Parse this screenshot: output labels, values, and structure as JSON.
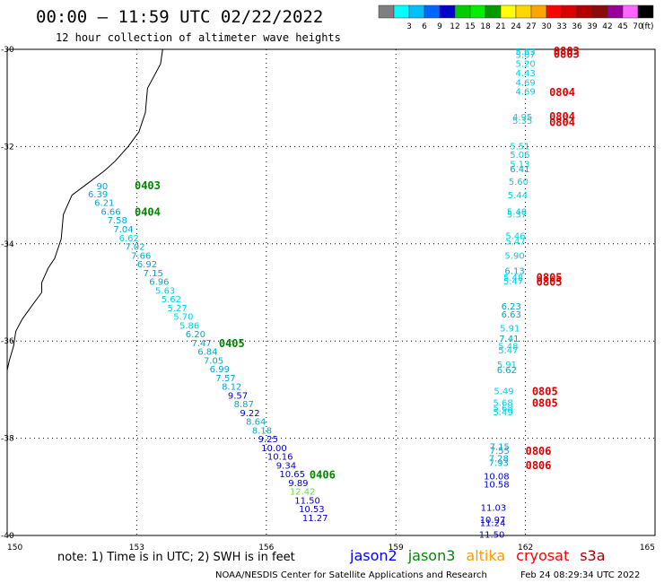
{
  "header": {
    "title": "00:00 – 11:59 UTC 02/22/2022",
    "subtitle": "12 hour collection of altimeter wave heights"
  },
  "colorbar": {
    "unit_label": "(ft)",
    "entries": [
      {
        "label": "",
        "color": "#7f7f7f"
      },
      {
        "label": "3",
        "color": "#00ffff"
      },
      {
        "label": "6",
        "color": "#00bfff"
      },
      {
        "label": "9",
        "color": "#0066ff"
      },
      {
        "label": "12",
        "color": "#0000cc"
      },
      {
        "label": "15",
        "color": "#00cc00"
      },
      {
        "label": "18",
        "color": "#00ee00"
      },
      {
        "label": "21",
        "color": "#009900"
      },
      {
        "label": "24",
        "color": "#ffff00"
      },
      {
        "label": "27",
        "color": "#ffd700"
      },
      {
        "label": "30",
        "color": "#ffa500"
      },
      {
        "label": "33",
        "color": "#ff0000"
      },
      {
        "label": "36",
        "color": "#dd0000"
      },
      {
        "label": "39",
        "color": "#b30000"
      },
      {
        "label": "42",
        "color": "#8b0a0a"
      },
      {
        "label": "45",
        "color": "#990099"
      },
      {
        "label": "70",
        "color": "#ff66ff"
      },
      {
        "label": "",
        "color": "#000000"
      }
    ]
  },
  "footer": {
    "note": "note:  1) Time is in UTC; 2) SWH is in feet",
    "credit": "NOAA/NESDIS Center for Satellite Applications and Research",
    "timestamp": "Feb 24 08:29:34 UTC 2022",
    "satellites": [
      {
        "name": "jason2",
        "color": "#0000ff"
      },
      {
        "name": "jason3",
        "color": "#008800"
      },
      {
        "name": "altika",
        "color": "#ff9900"
      },
      {
        "name": "cryosat",
        "color": "#ff0000"
      },
      {
        "name": "s3a",
        "color": "#990000"
      }
    ]
  },
  "chart_data": {
    "type": "scatter",
    "xlim": [
      150,
      165
    ],
    "ylim": [
      -40,
      -30
    ],
    "x_ticks": [
      "150",
      "153",
      "156",
      "159",
      "162",
      "165"
    ],
    "y_ticks": [
      "-30",
      "-32",
      "-34",
      "-36",
      "-38",
      "-40"
    ],
    "grid": true,
    "colors": {
      "light": "#00d0e8",
      "medium": "#00a8d0",
      "dark": "#0000cc",
      "green_light": "#66dd44",
      "time_green": "#008800",
      "time_red": "#dd0000",
      "coast": "#000000"
    },
    "coastline": [
      [
        153.6,
        -30.0
      ],
      [
        153.55,
        -30.3
      ],
      [
        153.25,
        -30.8
      ],
      [
        153.2,
        -31.3
      ],
      [
        153.05,
        -31.7
      ],
      [
        152.8,
        -32.0
      ],
      [
        152.5,
        -32.3
      ],
      [
        152.25,
        -32.5
      ],
      [
        151.8,
        -32.8
      ],
      [
        151.5,
        -33.0
      ],
      [
        151.3,
        -33.4
      ],
      [
        151.25,
        -33.9
      ],
      [
        151.1,
        -34.3
      ],
      [
        150.95,
        -34.5
      ],
      [
        150.8,
        -34.8
      ],
      [
        150.8,
        -35.0
      ],
      [
        150.55,
        -35.3
      ],
      [
        150.35,
        -35.55
      ],
      [
        150.2,
        -35.8
      ],
      [
        150.15,
        -36.1
      ],
      [
        150.05,
        -36.4
      ],
      [
        150.0,
        -36.6
      ]
    ],
    "series": [
      {
        "name": "jason3",
        "points": [
          {
            "x": 152.2,
            "y": -32.8,
            "v": "90",
            "c": "medium"
          },
          {
            "x": 152.1,
            "y": -32.97,
            "v": "6.39",
            "c": "medium"
          },
          {
            "x": 152.25,
            "y": -33.15,
            "v": "6.21",
            "c": "medium"
          },
          {
            "x": 152.4,
            "y": -33.33,
            "v": "6.66",
            "c": "medium"
          },
          {
            "x": 152.55,
            "y": -33.51,
            "v": "7.58",
            "c": "medium"
          },
          {
            "x": 152.69,
            "y": -33.69,
            "v": "7.04",
            "c": "medium"
          },
          {
            "x": 152.82,
            "y": -33.87,
            "v": "6.62",
            "c": "light"
          },
          {
            "x": 152.96,
            "y": -34.05,
            "v": "7.02",
            "c": "medium"
          },
          {
            "x": 153.1,
            "y": -34.23,
            "v": "7.66",
            "c": "medium"
          },
          {
            "x": 153.24,
            "y": -34.41,
            "v": "6.92",
            "c": "medium"
          },
          {
            "x": 153.38,
            "y": -34.59,
            "v": "7.15",
            "c": "medium"
          },
          {
            "x": 153.52,
            "y": -34.77,
            "v": "6.96",
            "c": "medium"
          },
          {
            "x": 153.66,
            "y": -34.95,
            "v": "5.63",
            "c": "light"
          },
          {
            "x": 153.8,
            "y": -35.13,
            "v": "5.62",
            "c": "light"
          },
          {
            "x": 153.94,
            "y": -35.31,
            "v": "5.27",
            "c": "light"
          },
          {
            "x": 154.08,
            "y": -35.49,
            "v": "5.70",
            "c": "light"
          },
          {
            "x": 154.22,
            "y": -35.67,
            "v": "5.86",
            "c": "light"
          },
          {
            "x": 154.36,
            "y": -35.85,
            "v": "6.20",
            "c": "medium"
          },
          {
            "x": 154.5,
            "y": -36.03,
            "v": "7.47",
            "c": "medium"
          },
          {
            "x": 154.64,
            "y": -36.21,
            "v": "6.84",
            "c": "medium"
          },
          {
            "x": 154.78,
            "y": -36.39,
            "v": "7.05",
            "c": "medium"
          },
          {
            "x": 154.92,
            "y": -36.57,
            "v": "6.99",
            "c": "medium"
          },
          {
            "x": 155.06,
            "y": -36.75,
            "v": "7.57",
            "c": "medium"
          },
          {
            "x": 155.2,
            "y": -36.93,
            "v": "8.12",
            "c": "medium"
          },
          {
            "x": 155.34,
            "y": -37.11,
            "v": "9.57",
            "c": "dark"
          },
          {
            "x": 155.48,
            "y": -37.29,
            "v": "8.87",
            "c": "medium"
          },
          {
            "x": 155.62,
            "y": -37.47,
            "v": "9.22",
            "c": "dark"
          },
          {
            "x": 155.76,
            "y": -37.65,
            "v": "8.64",
            "c": "medium"
          },
          {
            "x": 155.9,
            "y": -37.83,
            "v": "8.18",
            "c": "medium"
          },
          {
            "x": 156.04,
            "y": -38.01,
            "v": "9.25",
            "c": "dark"
          },
          {
            "x": 156.18,
            "y": -38.19,
            "v": "10.00",
            "c": "dark"
          },
          {
            "x": 156.32,
            "y": -38.37,
            "v": "10.16",
            "c": "dark"
          },
          {
            "x": 156.46,
            "y": -38.55,
            "v": "9.34",
            "c": "dark"
          },
          {
            "x": 156.6,
            "y": -38.73,
            "v": "10.65",
            "c": "dark"
          },
          {
            "x": 156.74,
            "y": -38.91,
            "v": "9.89",
            "c": "dark"
          },
          {
            "x": 156.84,
            "y": -39.09,
            "v": "12.42",
            "c": "green_light"
          },
          {
            "x": 156.95,
            "y": -39.27,
            "v": "11.50",
            "c": "dark"
          },
          {
            "x": 157.05,
            "y": -39.45,
            "v": "10.53",
            "c": "dark"
          },
          {
            "x": 157.13,
            "y": -39.63,
            "v": "11.27",
            "c": "dark"
          }
        ],
        "time_labels": [
          {
            "x": 152.95,
            "y": -32.8,
            "v": "0403",
            "c": "time_green"
          },
          {
            "x": 152.95,
            "y": -33.35,
            "v": "0404",
            "c": "time_green"
          },
          {
            "x": 154.9,
            "y": -36.05,
            "v": "0405",
            "c": "time_green"
          },
          {
            "x": 157.0,
            "y": -38.75,
            "v": "0406",
            "c": "time_green"
          }
        ]
      },
      {
        "name": "cryosat",
        "points": [
          {
            "x": 162.0,
            "y": -30.04,
            "v": "5.63",
            "c": "light"
          },
          {
            "x": 162.0,
            "y": -30.1,
            "v": "5.07",
            "c": "light"
          },
          {
            "x": 162.0,
            "y": -30.29,
            "v": "5.20",
            "c": "light"
          },
          {
            "x": 162.0,
            "y": -30.48,
            "v": "4.43",
            "c": "light"
          },
          {
            "x": 162.0,
            "y": -30.67,
            "v": "4.69",
            "c": "light"
          },
          {
            "x": 162.0,
            "y": -30.86,
            "v": "4.69",
            "c": "light"
          },
          {
            "x": 161.93,
            "y": -31.38,
            "v": "4.95",
            "c": "light"
          },
          {
            "x": 161.93,
            "y": -31.46,
            "v": "5.35",
            "c": "light"
          },
          {
            "x": 161.87,
            "y": -31.98,
            "v": "5.51",
            "c": "light"
          },
          {
            "x": 161.87,
            "y": -32.16,
            "v": "5.06",
            "c": "light"
          },
          {
            "x": 161.87,
            "y": -32.35,
            "v": "5.13",
            "c": "light"
          },
          {
            "x": 161.87,
            "y": -32.45,
            "v": "6.41",
            "c": "medium"
          },
          {
            "x": 161.84,
            "y": -32.71,
            "v": "5.60",
            "c": "light"
          },
          {
            "x": 161.82,
            "y": -32.99,
            "v": "5.44",
            "c": "light"
          },
          {
            "x": 161.8,
            "y": -33.33,
            "v": "5.48",
            "c": "light"
          },
          {
            "x": 161.8,
            "y": -33.39,
            "v": "5.37",
            "c": "light"
          },
          {
            "x": 161.77,
            "y": -33.83,
            "v": "5.46",
            "c": "light"
          },
          {
            "x": 161.77,
            "y": -33.94,
            "v": "5.47",
            "c": "light"
          },
          {
            "x": 161.75,
            "y": -34.23,
            "v": "5.90",
            "c": "light"
          },
          {
            "x": 161.75,
            "y": -34.55,
            "v": "6.13",
            "c": "medium"
          },
          {
            "x": 161.72,
            "y": -34.69,
            "v": "5.48",
            "c": "light"
          },
          {
            "x": 161.72,
            "y": -34.76,
            "v": "5.47",
            "c": "light"
          },
          {
            "x": 161.67,
            "y": -35.28,
            "v": "6.23",
            "c": "medium"
          },
          {
            "x": 161.67,
            "y": -35.44,
            "v": "6.63",
            "c": "medium"
          },
          {
            "x": 161.64,
            "y": -35.73,
            "v": "5.91",
            "c": "light"
          },
          {
            "x": 161.62,
            "y": -35.94,
            "v": "7.41",
            "c": "medium"
          },
          {
            "x": 161.6,
            "y": -36.1,
            "v": "5.48",
            "c": "light"
          },
          {
            "x": 161.6,
            "y": -36.18,
            "v": "5.47",
            "c": "light"
          },
          {
            "x": 161.57,
            "y": -36.48,
            "v": "5.91",
            "c": "light"
          },
          {
            "x": 161.57,
            "y": -36.59,
            "v": "6.62",
            "c": "medium"
          },
          {
            "x": 161.5,
            "y": -37.02,
            "v": "5.49",
            "c": "light"
          },
          {
            "x": 161.48,
            "y": -37.26,
            "v": "5.68",
            "c": "light"
          },
          {
            "x": 161.48,
            "y": -37.37,
            "v": "5.68",
            "c": "light"
          },
          {
            "x": 161.48,
            "y": -37.45,
            "v": "5.49",
            "c": "light"
          },
          {
            "x": 161.4,
            "y": -38.16,
            "v": "7.15",
            "c": "medium"
          },
          {
            "x": 161.4,
            "y": -38.25,
            "v": "7.55",
            "c": "medium"
          },
          {
            "x": 161.38,
            "y": -38.4,
            "v": "7.28",
            "c": "medium"
          },
          {
            "x": 161.38,
            "y": -38.5,
            "v": "7.93",
            "c": "medium"
          },
          {
            "x": 161.33,
            "y": -38.77,
            "v": "10.08",
            "c": "dark"
          },
          {
            "x": 161.33,
            "y": -38.94,
            "v": "10.58",
            "c": "dark"
          },
          {
            "x": 161.26,
            "y": -39.42,
            "v": "11.03",
            "c": "dark"
          },
          {
            "x": 161.24,
            "y": -39.67,
            "v": "10.97",
            "c": "dark"
          },
          {
            "x": 161.24,
            "y": -39.73,
            "v": "11.24",
            "c": "dark"
          },
          {
            "x": 161.22,
            "y": -39.97,
            "v": "11.50",
            "c": "dark"
          }
        ],
        "time_labels": [
          {
            "x": 162.65,
            "y": -30.04,
            "v": "0803",
            "c": "time_red"
          },
          {
            "x": 162.65,
            "y": -30.1,
            "v": "0803",
            "c": "time_red"
          },
          {
            "x": 162.55,
            "y": -30.89,
            "v": "0804",
            "c": "time_red"
          },
          {
            "x": 162.55,
            "y": -31.38,
            "v": "0804",
            "c": "time_red"
          },
          {
            "x": 162.55,
            "y": -31.5,
            "v": "0804",
            "c": "time_red"
          },
          {
            "x": 162.25,
            "y": -34.7,
            "v": "0805",
            "c": "time_red"
          },
          {
            "x": 162.25,
            "y": -34.79,
            "v": "0805",
            "c": "time_red"
          },
          {
            "x": 162.15,
            "y": -37.04,
            "v": "0805",
            "c": "time_red"
          },
          {
            "x": 162.15,
            "y": -37.28,
            "v": "0805",
            "c": "time_red"
          },
          {
            "x": 162.0,
            "y": -38.27,
            "v": "0806",
            "c": "time_red"
          },
          {
            "x": 162.0,
            "y": -38.56,
            "v": "0806",
            "c": "time_red"
          }
        ]
      }
    ]
  }
}
